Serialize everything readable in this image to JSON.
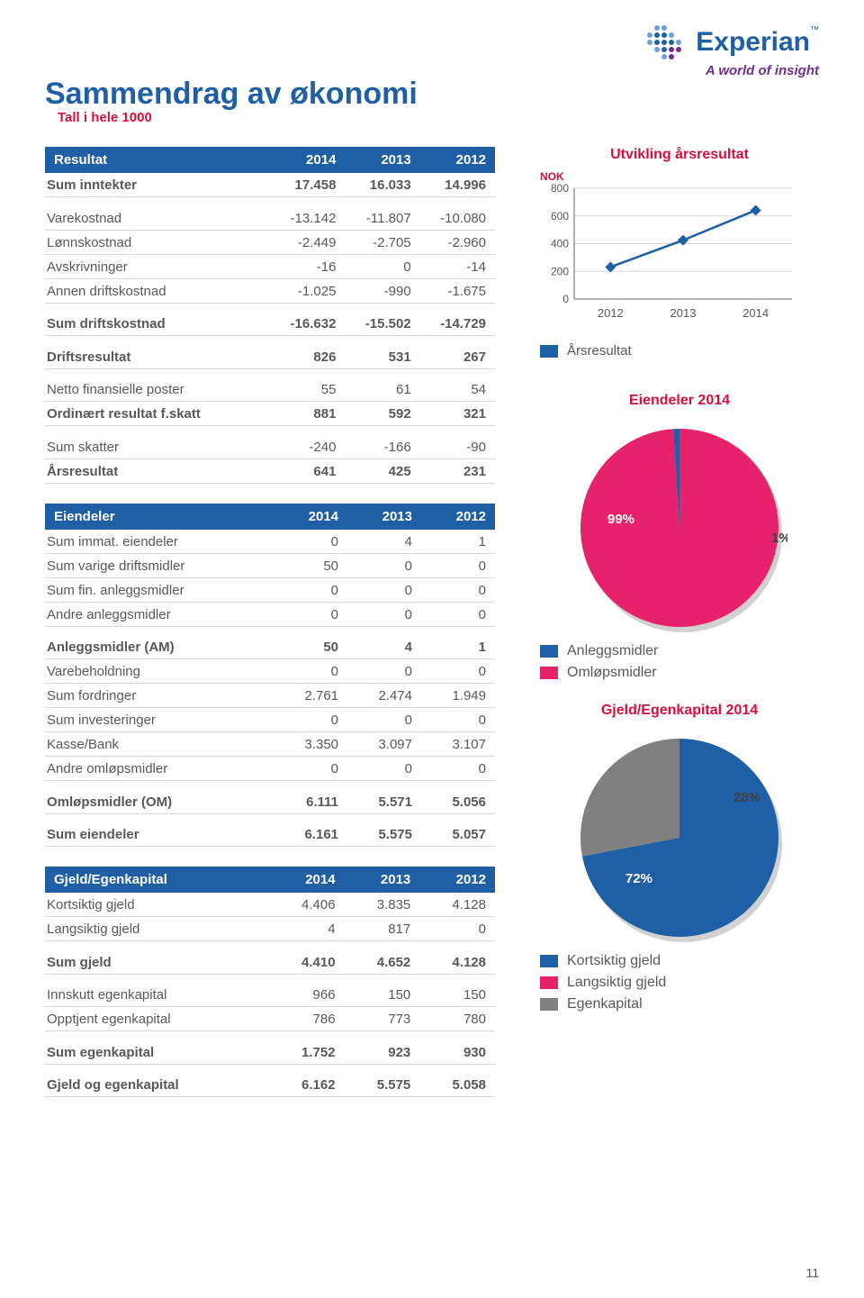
{
  "page": {
    "title": "Sammendrag av økonomi",
    "subtitle": "Tall i hele 1000",
    "number": "11"
  },
  "brand": {
    "name": "Experian",
    "tagline": "A world of insight",
    "color": "#1f5fa5",
    "accent": "#6f2f91"
  },
  "colors": {
    "brand_blue": "#1f5fa5",
    "accent_red": "#d60f3c",
    "text": "#595959",
    "pink": "#e6226b",
    "grey": "#808080",
    "light_grid": "#d9d9d9"
  },
  "tables": {
    "resultat": {
      "title": "Resultat",
      "years": [
        "2014",
        "2013",
        "2012"
      ],
      "rows": [
        {
          "label": "Sum inntekter",
          "vals": [
            "17.458",
            "16.033",
            "14.996"
          ],
          "bold": true
        },
        {
          "label": "Varekostnad",
          "vals": [
            "-13.142",
            "-11.807",
            "-10.080"
          ]
        },
        {
          "label": "Lønnskostnad",
          "vals": [
            "-2.449",
            "-2.705",
            "-2.960"
          ]
        },
        {
          "label": "Avskrivninger",
          "vals": [
            "-16",
            "0",
            "-14"
          ]
        },
        {
          "label": "Annen driftskostnad",
          "vals": [
            "-1.025",
            "-990",
            "-1.675"
          ]
        },
        {
          "label": "Sum driftskostnad",
          "vals": [
            "-16.632",
            "-15.502",
            "-14.729"
          ],
          "bold": true
        },
        {
          "label": "Driftsresultat",
          "vals": [
            "826",
            "531",
            "267"
          ],
          "bold": true
        },
        {
          "label": "Netto finansielle poster",
          "vals": [
            "55",
            "61",
            "54"
          ]
        },
        {
          "label": "Ordinært resultat f.skatt",
          "vals": [
            "881",
            "592",
            "321"
          ],
          "bold": true
        },
        {
          "label": "Sum skatter",
          "vals": [
            "-240",
            "-166",
            "-90"
          ]
        },
        {
          "label": "Årsresultat",
          "vals": [
            "641",
            "425",
            "231"
          ],
          "bold": true
        }
      ]
    },
    "eiendeler": {
      "title": "Eiendeler",
      "years": [
        "2014",
        "2013",
        "2012"
      ],
      "rows": [
        {
          "label": "Sum immat. eiendeler",
          "vals": [
            "0",
            "4",
            "1"
          ]
        },
        {
          "label": "Sum varige driftsmidler",
          "vals": [
            "50",
            "0",
            "0"
          ]
        },
        {
          "label": "Sum fin. anleggsmidler",
          "vals": [
            "0",
            "0",
            "0"
          ]
        },
        {
          "label": "Andre anleggsmidler",
          "vals": [
            "0",
            "0",
            "0"
          ]
        },
        {
          "label": "Anleggsmidler (AM)",
          "vals": [
            "50",
            "4",
            "1"
          ],
          "bold": true
        },
        {
          "label": "Varebeholdning",
          "vals": [
            "0",
            "0",
            "0"
          ]
        },
        {
          "label": "Sum fordringer",
          "vals": [
            "2.761",
            "2.474",
            "1.949"
          ]
        },
        {
          "label": "Sum investeringer",
          "vals": [
            "0",
            "0",
            "0"
          ]
        },
        {
          "label": "Kasse/Bank",
          "vals": [
            "3.350",
            "3.097",
            "3.107"
          ]
        },
        {
          "label": "Andre omløpsmidler",
          "vals": [
            "0",
            "0",
            "0"
          ]
        },
        {
          "label": "Omløpsmidler (OM)",
          "vals": [
            "6.111",
            "5.571",
            "5.056"
          ],
          "bold": true
        },
        {
          "label": "Sum eiendeler",
          "vals": [
            "6.161",
            "5.575",
            "5.057"
          ],
          "bold": true
        }
      ]
    },
    "gjeld": {
      "title": "Gjeld/Egenkapital",
      "years": [
        "2014",
        "2013",
        "2012"
      ],
      "rows": [
        {
          "label": "Kortsiktig gjeld",
          "vals": [
            "4.406",
            "3.835",
            "4.128"
          ]
        },
        {
          "label": "Langsiktig gjeld",
          "vals": [
            "4",
            "817",
            "0"
          ]
        },
        {
          "label": "Sum gjeld",
          "vals": [
            "4.410",
            "4.652",
            "4.128"
          ],
          "bold": true
        },
        {
          "label": "Innskutt egenkapital",
          "vals": [
            "966",
            "150",
            "150"
          ]
        },
        {
          "label": "Opptjent egenkapital",
          "vals": [
            "786",
            "773",
            "780"
          ]
        },
        {
          "label": "Sum egenkapital",
          "vals": [
            "1.752",
            "923",
            "930"
          ],
          "bold": true
        },
        {
          "label": "Gjeld og egenkapital",
          "vals": [
            "6.162",
            "5.575",
            "5.058"
          ],
          "bold": true
        }
      ]
    }
  },
  "charts": {
    "line": {
      "title": "Utvikling årsresultat",
      "ylabel": "NOK",
      "x_labels": [
        "2012",
        "2013",
        "2014"
      ],
      "y_ticks": [
        "0",
        "200",
        "400",
        "600",
        "800"
      ],
      "ylim": [
        0,
        800
      ],
      "values": [
        231,
        425,
        641
      ],
      "line_color": "#1f5fa5",
      "marker_fill": "#1f5fa5",
      "grid_color": "#d9d9d9",
      "axis_color": "#808080",
      "legend": "Årsresultat"
    },
    "pie1": {
      "title": "Eiendeler 2014",
      "slices": [
        {
          "label": "Omløpsmidler",
          "pct": 99,
          "color": "#e6226b",
          "text": "99%"
        },
        {
          "label": "Anleggsmidler",
          "pct": 1,
          "color": "#1f5fa5",
          "text": "1%"
        }
      ],
      "legend": [
        {
          "label": "Anleggsmidler",
          "color": "#1f5fa5"
        },
        {
          "label": "Omløpsmidler",
          "color": "#e6226b"
        }
      ]
    },
    "pie2": {
      "title": "Gjeld/Egenkapital 2014",
      "slices": [
        {
          "label": "Kortsiktig gjeld",
          "pct": 72,
          "color": "#1f5fa5",
          "text": "72%"
        },
        {
          "label": "Egenkapital",
          "pct": 28,
          "color": "#808080",
          "text": "28%"
        },
        {
          "label": "Langsiktig gjeld",
          "pct": 0,
          "color": "#e6226b",
          "text": ""
        }
      ],
      "legend": [
        {
          "label": "Kortsiktig gjeld",
          "color": "#1f5fa5"
        },
        {
          "label": "Langsiktig gjeld",
          "color": "#e6226b"
        },
        {
          "label": "Egenkapital",
          "color": "#808080"
        }
      ]
    }
  }
}
